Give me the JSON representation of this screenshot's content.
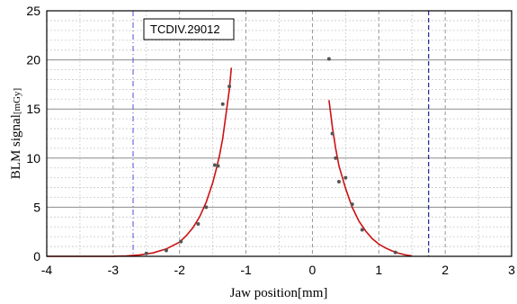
{
  "chart_data": {
    "type": "scatter",
    "xlabel": "Jaw position",
    "xlabel_unit": "[mm]",
    "ylabel": "BLM signal",
    "ylabel_unit": "[mGy]",
    "xlim": [
      -4,
      3
    ],
    "ylim": [
      0,
      25
    ],
    "x_ticks": [
      "-4",
      "-3",
      "-2",
      "-1",
      "0",
      "1",
      "2",
      "3"
    ],
    "y_ticks": [
      "0",
      "5",
      "10",
      "15",
      "20",
      "25"
    ],
    "grid": true,
    "annotation": "TCDIV.29012",
    "vertical_lines": [
      {
        "x": -2.7,
        "style": "dash-dot",
        "color": "#6a6ae0"
      },
      {
        "x": 1.75,
        "style": "dashed",
        "color": "#1c1c9a"
      }
    ],
    "series": [
      {
        "kind": "points",
        "color": "#555555",
        "points": [
          {
            "x": -2.5,
            "y": 0.3
          },
          {
            "x": -2.2,
            "y": 0.6
          },
          {
            "x": -1.98,
            "y": 1.5
          },
          {
            "x": -1.72,
            "y": 3.3
          },
          {
            "x": -1.6,
            "y": 5.0
          },
          {
            "x": -1.47,
            "y": 9.3
          },
          {
            "x": -1.42,
            "y": 9.2
          },
          {
            "x": -1.35,
            "y": 15.5
          },
          {
            "x": -1.25,
            "y": 17.3
          },
          {
            "x": 0.25,
            "y": 20.1
          },
          {
            "x": 0.3,
            "y": 12.5
          },
          {
            "x": 0.35,
            "y": 10.0
          },
          {
            "x": 0.4,
            "y": 7.6
          },
          {
            "x": 0.5,
            "y": 8.0
          },
          {
            "x": 0.6,
            "y": 5.3
          },
          {
            "x": 0.75,
            "y": 2.7
          },
          {
            "x": 1.25,
            "y": 0.4
          }
        ]
      },
      {
        "kind": "line",
        "color": "#cc1111",
        "points": [
          {
            "x": -4.0,
            "y": 0.0
          },
          {
            "x": -3.0,
            "y": 0.01
          },
          {
            "x": -2.8,
            "y": 0.05
          },
          {
            "x": -2.6,
            "y": 0.15
          },
          {
            "x": -2.4,
            "y": 0.35
          },
          {
            "x": -2.2,
            "y": 0.75
          },
          {
            "x": -2.0,
            "y": 1.45
          },
          {
            "x": -1.9,
            "y": 2.1
          },
          {
            "x": -1.8,
            "y": 2.9
          },
          {
            "x": -1.7,
            "y": 4.0
          },
          {
            "x": -1.6,
            "y": 5.5
          },
          {
            "x": -1.5,
            "y": 7.5
          },
          {
            "x": -1.45,
            "y": 8.8
          },
          {
            "x": -1.4,
            "y": 10.2
          },
          {
            "x": -1.35,
            "y": 12.0
          },
          {
            "x": -1.3,
            "y": 14.5
          },
          {
            "x": -1.25,
            "y": 17.0
          },
          {
            "x": -1.22,
            "y": 19.2
          }
        ]
      },
      {
        "kind": "line",
        "color": "#cc1111",
        "points": [
          {
            "x": 0.25,
            "y": 15.9
          },
          {
            "x": 0.3,
            "y": 13.2
          },
          {
            "x": 0.35,
            "y": 11.0
          },
          {
            "x": 0.4,
            "y": 9.2
          },
          {
            "x": 0.5,
            "y": 6.9
          },
          {
            "x": 0.6,
            "y": 5.0
          },
          {
            "x": 0.7,
            "y": 3.6
          },
          {
            "x": 0.8,
            "y": 2.6
          },
          {
            "x": 0.9,
            "y": 1.8
          },
          {
            "x": 1.0,
            "y": 1.25
          },
          {
            "x": 1.1,
            "y": 0.85
          },
          {
            "x": 1.2,
            "y": 0.55
          },
          {
            "x": 1.3,
            "y": 0.32
          },
          {
            "x": 1.4,
            "y": 0.15
          },
          {
            "x": 1.5,
            "y": 0.05
          }
        ]
      }
    ]
  }
}
